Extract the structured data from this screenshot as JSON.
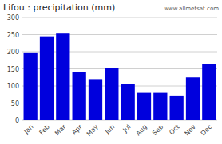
{
  "chart_data": {
    "type": "bar",
    "title": "Lifou : precipitation (mm)",
    "categories": [
      "Jan",
      "Feb",
      "Mar",
      "Apr",
      "May",
      "Jun",
      "Jul",
      "Aug",
      "Sep",
      "Oct",
      "Nov",
      "Dec"
    ],
    "values": [
      198,
      245,
      253,
      140,
      120,
      152,
      105,
      80,
      80,
      70,
      125,
      165
    ],
    "color": "#0000DD",
    "ylim": [
      0,
      300
    ],
    "yticks": [
      0,
      50,
      100,
      150,
      200,
      250,
      300
    ],
    "grid": true,
    "annotations": [
      "www.allmetsat.com"
    ]
  }
}
